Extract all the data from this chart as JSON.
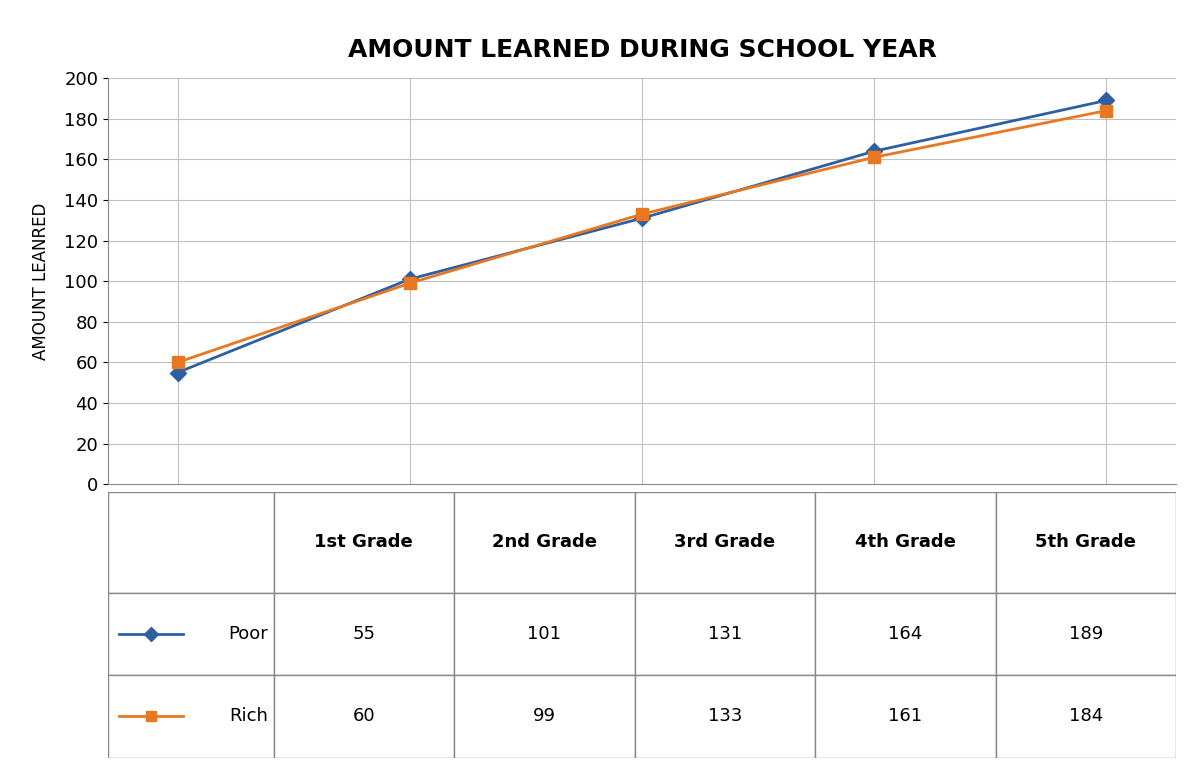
{
  "title": "AMOUNT LEARNED DURING SCHOOL YEAR",
  "ylabel": "AMOUNT LEANRED",
  "categories": [
    "1st Grade",
    "2nd Grade",
    "3rd Grade",
    "4th Grade",
    "5th Grade"
  ],
  "series": [
    {
      "label": "Poor",
      "values": [
        55,
        101,
        131,
        164,
        189
      ],
      "color": "#2E5FA3",
      "marker": "D",
      "marker_size": 8
    },
    {
      "label": "Rich",
      "values": [
        60,
        99,
        133,
        161,
        184
      ],
      "color": "#E87722",
      "marker": "s",
      "marker_size": 8
    }
  ],
  "ylim": [
    0,
    200
  ],
  "yticks": [
    0,
    20,
    40,
    60,
    80,
    100,
    120,
    140,
    160,
    180,
    200
  ],
  "title_fontsize": 18,
  "axis_label_fontsize": 12,
  "tick_fontsize": 13,
  "background_color": "#ffffff",
  "grid_color": "#c0c0c0",
  "border_color": "#888888"
}
